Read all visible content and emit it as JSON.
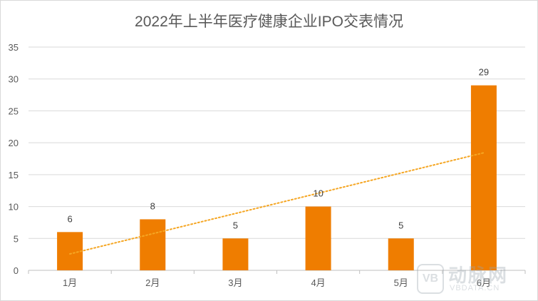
{
  "chart_data": {
    "type": "bar",
    "title": "2022年上半年医疗健康企业IPO交表情况",
    "categories": [
      "1月",
      "2月",
      "3月",
      "4月",
      "5月",
      "6月"
    ],
    "series": [
      {
        "values": [
          6,
          8,
          5,
          10,
          5,
          29
        ],
        "color": "#ef7d00"
      }
    ],
    "data_labels": [
      "6",
      "8",
      "5",
      "10",
      "5",
      "29"
    ],
    "trendline": {
      "type": "linear",
      "style": "dotted",
      "color": "#f5a623"
    },
    "ylim": [
      0,
      35
    ],
    "yticks": [
      0,
      5,
      10,
      15,
      20,
      25,
      30,
      35
    ],
    "ytick_labels": [
      "0",
      "5",
      "10",
      "15",
      "20",
      "25",
      "30",
      "35"
    ],
    "grid": true,
    "legend": "none"
  },
  "watermark": {
    "mark": "VB",
    "name": "动脉网",
    "url": "VBDATA.CN"
  }
}
